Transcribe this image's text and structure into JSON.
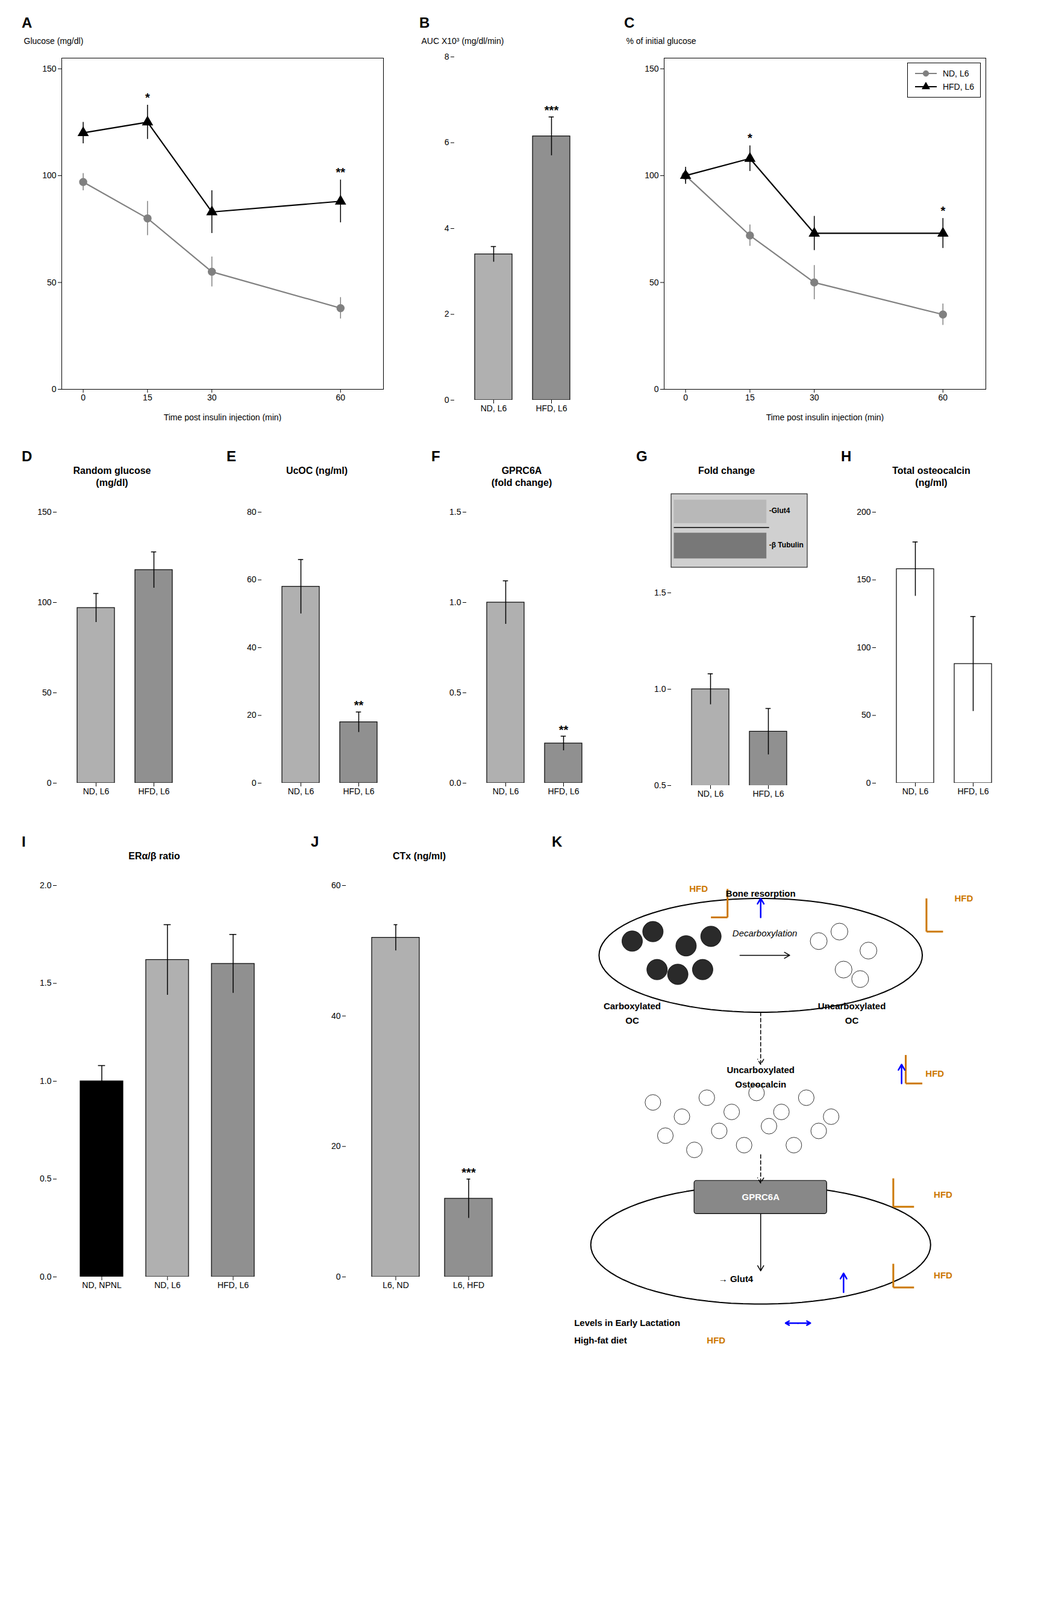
{
  "chart_data": [
    {
      "type": "line",
      "title": "A",
      "xlabel": "Time post insulin injection (min)",
      "ylabel": "Glucose (mg/dl)",
      "x": [
        0,
        15,
        30,
        60
      ],
      "series": [
        {
          "color": "#808080",
          "marker": "circle",
          "values": [
            97,
            80,
            55,
            38
          ],
          "errors": [
            4,
            8,
            7,
            5
          ]
        },
        {
          "color": "#000000",
          "marker": "triangle",
          "values": [
            120,
            125,
            83,
            88
          ],
          "errors": [
            5,
            8,
            10,
            10
          ]
        }
      ],
      "xlim": [
        -5,
        70
      ],
      "xticks": [
        0,
        15,
        30,
        60
      ],
      "ylim": [
        0,
        155
      ],
      "yticks": [
        0,
        50,
        100,
        150
      ],
      "annotations": [
        {
          "text": "*",
          "x": 15
        },
        {
          "text": "**",
          "x": 60
        }
      ]
    },
    {
      "type": "bar",
      "title": "B",
      "ylabel": "AUC X10³ (mg/dl/min)",
      "categories": [
        "ND, L6",
        "HFD, L6"
      ],
      "values": [
        3.4,
        6.15
      ],
      "errors": [
        0.18,
        0.45
      ],
      "colors": [
        "#b0b0b0",
        "#909090"
      ],
      "ylim": [
        0,
        8
      ],
      "yticks": [
        0,
        2,
        4,
        6,
        8
      ],
      "annotations": [
        {
          "text": "***",
          "category": "HFD, L6"
        }
      ]
    },
    {
      "type": "line",
      "title": "C",
      "xlabel": "Time post insulin injection (min)",
      "ylabel": "% of initial glucose",
      "x": [
        0,
        15,
        30,
        60
      ],
      "series": [
        {
          "name": "ND, L6",
          "color": "#808080",
          "marker": "circle",
          "values": [
            100,
            72,
            50,
            35
          ],
          "errors": [
            3,
            5,
            8,
            5
          ]
        },
        {
          "name": "HFD, L6",
          "color": "#000000",
          "marker": "triangle",
          "values": [
            100,
            108,
            73,
            73
          ],
          "errors": [
            4,
            6,
            8,
            7
          ]
        }
      ],
      "xlim": [
        -5,
        70
      ],
      "xticks": [
        0,
        15,
        30,
        60
      ],
      "ylim": [
        0,
        155
      ],
      "yticks": [
        0,
        50,
        100,
        150
      ],
      "legend": "upper right",
      "annotations": [
        {
          "text": "*",
          "x": 15
        },
        {
          "text": "*",
          "x": 60
        }
      ]
    },
    {
      "type": "bar",
      "title": "D",
      "subtitle": "Random glucose\n(mg/dl)",
      "categories": [
        "ND, L6",
        "HFD, L6"
      ],
      "values": [
        97,
        118
      ],
      "errors": [
        8,
        10
      ],
      "colors": [
        "#b0b0b0",
        "#909090"
      ],
      "ylim": [
        0,
        150
      ],
      "yticks": [
        0,
        50,
        100,
        150
      ]
    },
    {
      "type": "bar",
      "title": "E",
      "subtitle": "UcOC (ng/ml)",
      "categories": [
        "ND, L6",
        "HFD, L6"
      ],
      "values": [
        58,
        18
      ],
      "errors": [
        8,
        3
      ],
      "colors": [
        "#b0b0b0",
        "#909090"
      ],
      "ylim": [
        0,
        80
      ],
      "yticks": [
        0,
        20,
        40,
        60,
        80
      ],
      "annotations": [
        {
          "text": "**",
          "category": "HFD, L6"
        }
      ]
    },
    {
      "type": "bar",
      "title": "F",
      "subtitle": "GPRC6A\n(fold change)",
      "categories": [
        "ND, L6",
        "HFD, L6"
      ],
      "values": [
        1.0,
        0.22
      ],
      "errors": [
        0.12,
        0.04
      ],
      "colors": [
        "#b0b0b0",
        "#909090"
      ],
      "ylim": [
        0,
        1.5
      ],
      "yticks": [
        {
          "value": 0,
          "label": "0.0"
        },
        0.5,
        {
          "value": 1.0,
          "label": "1.0"
        },
        1.5
      ],
      "annotations": [
        {
          "text": "**",
          "category": "HFD, L6"
        }
      ]
    },
    {
      "type": "bar",
      "title": "G",
      "subtitle": "Fold change",
      "categories": [
        "ND, L6",
        "HFD, L6"
      ],
      "values": [
        1.0,
        0.78
      ],
      "errors": [
        0.08,
        0.12
      ],
      "colors": [
        "#b0b0b0",
        "#909090"
      ],
      "ylim": [
        0.5,
        1.5
      ],
      "yticks": [
        0.5,
        {
          "value": 1.0,
          "label": "1.0"
        },
        1.5
      ]
    },
    {
      "type": "blot",
      "annotations": [
        {
          "text": "-Glut4"
        },
        {
          "text": "-β Tubulin"
        }
      ],
      "colors": [
        "#d0d0d0",
        "#b8b8b8",
        "#787878"
      ]
    },
    {
      "type": "bar",
      "title": "H",
      "subtitle": "Total osteocalcin\n(ng/ml)",
      "categories": [
        "ND, L6",
        "HFD, L6"
      ],
      "values": [
        158,
        88
      ],
      "errors": [
        20,
        35
      ],
      "colors": [
        "#ffffff",
        "#ffffff"
      ],
      "ylim": [
        0,
        200
      ],
      "yticks": [
        0,
        50,
        100,
        150,
        200
      ]
    },
    {
      "type": "bar",
      "title": "I",
      "subtitle": "ERα/β ratio",
      "categories": [
        "ND, NPNL",
        "ND, L6",
        "HFD, L6"
      ],
      "values": [
        1.0,
        1.62,
        1.6
      ],
      "errors": [
        0.08,
        0.18,
        0.15
      ],
      "colors": [
        "#000000",
        "#b0b0b0",
        "#909090"
      ],
      "ylim": [
        0,
        2.0
      ],
      "yticks": [
        {
          "value": 0,
          "label": "0.0"
        },
        0.5,
        {
          "value": 1.0,
          "label": "1.0"
        },
        1.5,
        {
          "value": 2.0,
          "label": "2.0"
        }
      ]
    },
    {
      "type": "bar",
      "title": "J",
      "subtitle": "CTx (ng/ml)",
      "categories": [
        "L6, ND",
        "L6, HFD"
      ],
      "values": [
        52,
        12
      ],
      "errors": [
        2,
        3
      ],
      "colors": [
        "#b0b0b0",
        "#909090"
      ],
      "ylim": [
        0,
        60
      ],
      "yticks": [
        0,
        20,
        40,
        60
      ],
      "annotations": [
        {
          "text": "***",
          "category": "L6, HFD"
        }
      ]
    },
    {
      "type": "diagram",
      "title": "K",
      "annotations": [
        {
          "text": "Carboxylated"
        },
        {
          "text": "OC"
        },
        {
          "text": "Decarboxylation"
        },
        {
          "text": "Uncarboxylated"
        },
        {
          "text": "OC"
        },
        {
          "text": "Bone resorption"
        },
        {
          "text": "HFD",
          "color": "#cc7700"
        },
        {
          "text": "HFD",
          "color": "#cc7700"
        },
        {
          "text": "Uncarboxylated"
        },
        {
          "text": "Osteocalcin"
        },
        {
          "text": "HFD",
          "color": "#cc7700"
        },
        {
          "text": "GPRC6A",
          "color": "#ffffff"
        },
        {
          "text": "HFD",
          "color": "#cc7700"
        },
        {
          "text": "→ Glut4"
        },
        {
          "text": "HFD",
          "color": "#cc7700"
        },
        {
          "text": "Levels in Early Lactation"
        },
        {
          "text": "High-fat diet"
        },
        {
          "text": "HFD",
          "color": "#cc7700"
        }
      ],
      "colors": [
        "#0000ff",
        "#cc7700",
        "#2a2a2a",
        "#888888"
      ]
    }
  ]
}
